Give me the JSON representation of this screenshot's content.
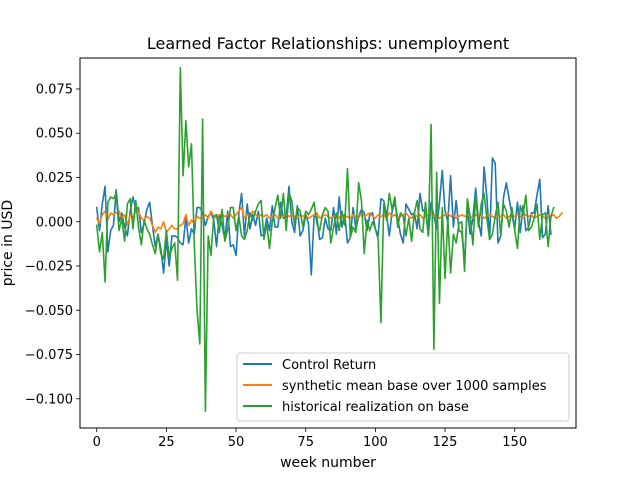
{
  "chart_data": {
    "type": "line",
    "title": "Learned Factor Relationships: unemployment",
    "xlabel": "week number",
    "ylabel": "price in USD",
    "xlim": [
      -6,
      172
    ],
    "ylim": [
      -0.1165,
      0.0925
    ],
    "xticks": [
      0,
      25,
      50,
      75,
      100,
      125,
      150
    ],
    "xtick_labels": [
      "0",
      "25",
      "50",
      "75",
      "100",
      "125",
      "150"
    ],
    "yticks": [
      0.075,
      0.05,
      0.025,
      0.0,
      -0.025,
      -0.05,
      -0.075,
      -0.1
    ],
    "ytick_labels": [
      "0.075",
      "0.050",
      "0.025",
      "0.000",
      "−0.025",
      "−0.050",
      "−0.075",
      "−0.100"
    ],
    "grid": false,
    "legend_position": "lower-right",
    "series": [
      {
        "name": "Control Return",
        "color": "#1f77b4",
        "values": [
          0.008,
          -0.005,
          0.01,
          0.02,
          -0.017,
          -0.005,
          -0.002,
          0.018,
          0.0,
          0.005,
          -0.003,
          -0.008,
          0.006,
          0.014,
          0.007,
          0.008,
          -0.006,
          -0.001,
          0.007,
          0.011,
          -0.002,
          -0.014,
          -0.007,
          -0.015,
          -0.029,
          -0.01,
          -0.025,
          -0.008,
          -0.008,
          -0.009,
          -0.012,
          -0.013,
          0.003,
          -0.012,
          -0.004,
          -0.007,
          0.008,
          0.008,
          0.005,
          -0.002,
          0.003,
          0.005,
          0.001,
          -0.014,
          0.004,
          -0.002,
          -0.01,
          0.006,
          -0.014,
          -0.013,
          -0.019,
          0.005,
          0.016,
          -0.008,
          0.01,
          -0.004,
          0.004,
          -0.002,
          0.006,
          -0.008,
          -0.007,
          0.002,
          -0.005,
          0.009,
          -0.003,
          -0.003,
          0.011,
          0.002,
          0.003,
          0.02,
          0.0,
          -0.006,
          0.009,
          -0.008,
          -0.005,
          0.004,
          -0.001,
          -0.03,
          0.003,
          0.003,
          -0.01,
          -0.009,
          0.002,
          -0.004,
          -0.005,
          0.008,
          -0.007,
          0.014,
          -0.003,
          0.004,
          -0.012,
          -0.009,
          0.008,
          -0.004,
          0.003,
          0.007,
          0.005,
          -0.005,
          0.004,
          0.005,
          -0.004,
          -0.008,
          0.013,
          0.012,
          0.004,
          -0.008,
          0.006,
          0.011,
          0.002,
          -0.007,
          -0.012,
          0.01,
          0.007,
          0.004,
          0.005,
          -0.004,
          0.016,
          0.006,
          0.007,
          -0.008,
          0.011,
          0.003,
          -0.004,
          0.011,
          0.029,
          0.006,
          0.0,
          0.026,
          -0.003,
          0.012,
          -0.005,
          -0.006,
          -0.023,
          0.008,
          -0.007,
          0.002,
          0.019,
          0.0,
          -0.008,
          0.031,
          0.014,
          -0.01,
          0.036,
          0.033,
          -0.012,
          -0.008,
          0.014,
          0.022,
          0.013,
          0.004,
          -0.004,
          0.011,
          -0.006,
          0.009,
          -0.005,
          -0.003,
          0.005,
          0.005,
          0.015,
          0.024,
          -0.009,
          -0.007,
          0.009,
          -0.007
        ]
      },
      {
        "name": "synthetic mean base over 1000 samples",
        "color": "#ff7f0e",
        "values": [
          0.002,
          -0.001,
          0.004,
          0.006,
          0.001,
          0.005,
          0.004,
          0.005,
          0.006,
          0.002,
          0.004,
          -0.002,
          0.004,
          0.002,
          0.006,
          0.006,
          0.002,
          0.001,
          0.003,
          0.002,
          -0.002,
          -0.006,
          -0.003,
          -0.004,
          0.0,
          -0.006,
          -0.004,
          -0.002,
          -0.004,
          -0.004,
          -0.002,
          -0.001,
          0.004,
          -0.002,
          0.001,
          -0.001,
          0.003,
          0.002,
          0.002,
          0.004,
          0.002,
          0.006,
          0.003,
          0.002,
          0.004,
          0.004,
          0.003,
          0.004,
          0.004,
          0.002,
          0.004,
          0.006,
          0.008,
          0.002,
          0.004,
          0.003,
          0.006,
          0.004,
          0.003,
          0.004,
          0.003,
          0.004,
          0.002,
          0.003,
          0.004,
          0.002,
          0.004,
          0.003,
          0.004,
          0.003,
          0.004,
          0.003,
          0.002,
          0.004,
          0.003,
          0.004,
          0.002,
          0.003,
          0.004,
          0.005,
          0.002,
          0.003,
          0.004,
          0.003,
          0.002,
          0.003,
          0.004,
          0.002,
          0.005,
          0.002,
          0.003,
          0.002,
          0.004,
          0.003,
          0.002,
          0.005,
          0.003,
          0.004,
          0.005,
          0.003,
          0.002,
          0.004,
          0.003,
          0.004,
          0.002,
          0.005,
          0.003,
          0.004,
          0.002,
          0.003,
          0.004,
          0.005,
          0.003,
          0.002,
          0.004,
          0.003,
          0.004,
          0.002,
          0.003,
          0.004,
          0.005,
          0.003,
          0.004,
          0.002,
          0.003,
          0.004,
          0.005,
          0.003,
          0.004,
          0.002,
          0.003,
          0.004,
          0.003,
          0.004,
          0.003,
          0.002,
          0.004,
          0.003,
          0.004,
          0.002,
          0.003,
          0.004,
          0.003,
          0.002,
          0.004,
          0.003,
          0.004,
          0.002,
          0.003,
          0.004,
          0.003,
          0.004,
          0.003,
          0.002,
          0.004,
          0.003,
          0.004,
          0.002,
          0.003,
          0.004,
          0.003,
          0.002,
          0.004,
          0.003,
          0.004,
          0.002,
          0.003,
          0.005
        ]
      },
      {
        "name": "historical realization on base",
        "color": "#2ca02c",
        "values": [
          -0.002,
          -0.017,
          -0.006,
          -0.034,
          0.011,
          0.014,
          0.013,
          0.016,
          -0.005,
          0.002,
          -0.011,
          0.01,
          0.013,
          -0.004,
          0.012,
          -0.003,
          -0.013,
          0.001,
          -0.004,
          -0.007,
          -0.013,
          -0.018,
          -0.007,
          -0.018,
          -0.021,
          -0.005,
          -0.02,
          -0.015,
          -0.012,
          -0.033,
          0.087,
          0.026,
          0.057,
          0.031,
          0.044,
          -0.012,
          -0.05,
          -0.069,
          0.058,
          -0.107,
          -0.008,
          -0.019,
          0.003,
          0.004,
          -0.006,
          0.007,
          -0.011,
          -0.004,
          0.008,
          0.008,
          -0.005,
          0.003,
          -0.008,
          -0.01,
          -0.005,
          0.005,
          0.001,
          0.006,
          0.01,
          0.012,
          -0.01,
          -0.001,
          -0.015,
          0.0,
          0.008,
          0.015,
          0.002,
          0.016,
          -0.005,
          0.016,
          0.012,
          -0.002,
          0.008,
          0.006,
          -0.003,
          0.006,
          0.004,
          0.007,
          0.011,
          -0.001,
          -0.005,
          0.004,
          0.008,
          0.006,
          -0.012,
          -0.003,
          0.005,
          -0.005,
          0.006,
          -0.002,
          0.03,
          -0.009,
          -0.003,
          -0.006,
          0.022,
          0.012,
          -0.018,
          0.001,
          -0.005,
          0.0,
          -0.004,
          -0.01,
          -0.057,
          0.01,
          0.001,
          0.016,
          0.007,
          0.014,
          -0.003,
          0.005,
          0.003,
          -0.008,
          0.002,
          -0.011,
          0.005,
          0.012,
          -0.004,
          -0.006,
          0.011,
          -0.008,
          0.055,
          -0.072,
          0.028,
          -0.046,
          0.008,
          -0.032,
          0.002,
          -0.029,
          -0.007,
          -0.012,
          -0.001,
          0.0,
          -0.028,
          0.013,
          0.003,
          -0.013,
          0.015,
          -0.003,
          0.01,
          0.016,
          0.002,
          -0.01,
          -0.007,
          0.003,
          0.011,
          -0.008,
          0.01,
          0.006,
          -0.003,
          0.008,
          -0.005,
          -0.015,
          0.009,
          0.004,
          0.015,
          -0.005,
          -0.003,
          0.002,
          0.01,
          -0.01,
          0.004,
          0.005,
          -0.014,
          0.003,
          0.008
        ]
      }
    ]
  }
}
